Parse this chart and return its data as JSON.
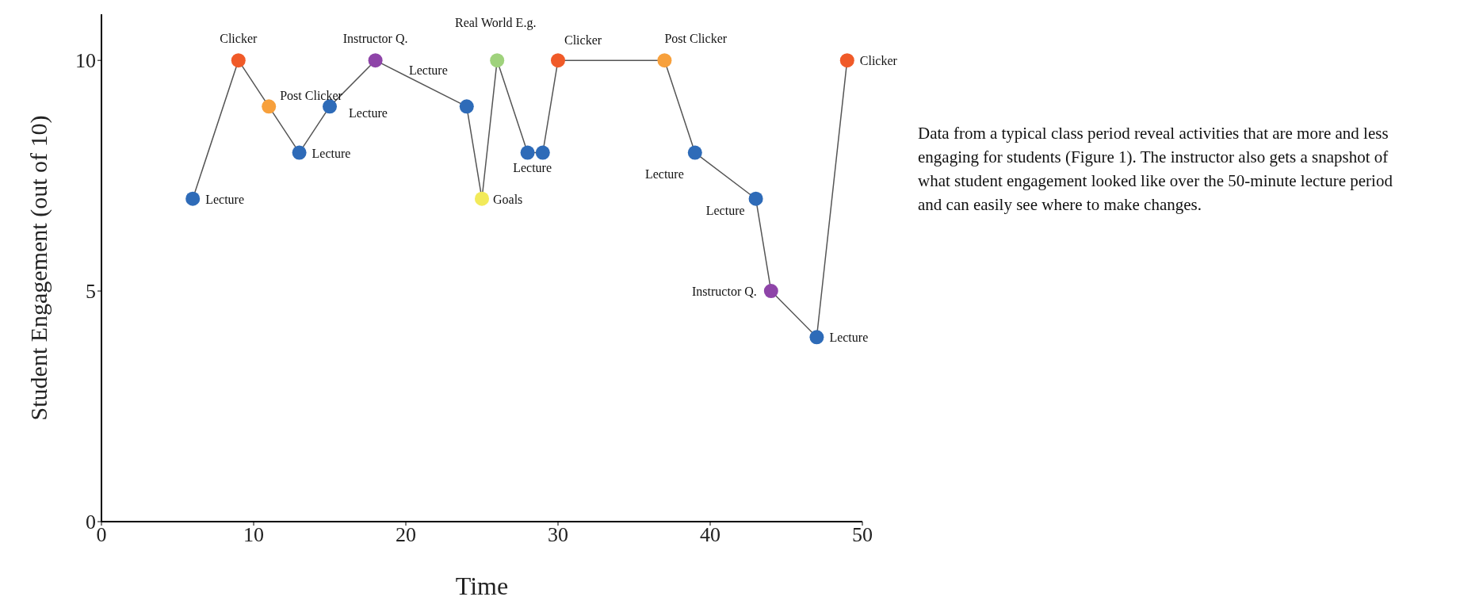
{
  "chart_data": {
    "type": "line",
    "xlabel": "Time",
    "ylabel": "Student Engagement (out of 10)",
    "xlim": [
      0,
      50
    ],
    "xticks": [
      0,
      10,
      20,
      30,
      40,
      50
    ],
    "ylim": [
      0,
      11
    ],
    "yticks": [
      0,
      5,
      10
    ],
    "marker": "circle",
    "line_style": "solid",
    "series": [
      {
        "color": "#555555",
        "x": [
          6,
          9,
          11,
          13,
          15,
          18,
          24,
          25,
          26,
          28,
          29,
          30,
          37,
          39,
          43,
          44,
          47,
          49
        ],
        "values": [
          7,
          10,
          9,
          8,
          9,
          10,
          9,
          7,
          10,
          8,
          8,
          10,
          10,
          8,
          7,
          5,
          4,
          10
        ],
        "colors": [
          "#2e6bb8",
          "#f05a28",
          "#f7a03c",
          "#2e6bb8",
          "#2e6bb8",
          "#8e44a8",
          "#2e6bb8",
          "#f2ea5a",
          "#9fd27c",
          "#2e6bb8",
          "#2e6bb8",
          "#f05a28",
          "#f7a03c",
          "#2e6bb8",
          "#2e6bb8",
          "#8e44a8",
          "#2e6bb8",
          "#f05a28"
        ],
        "value_labels": [
          "Lecture",
          "Clicker",
          "Post Clicker",
          "Lecture",
          "Lecture",
          "Instructor Q.",
          "Lecture",
          "Goals",
          "Real World E.g.",
          "Lecture",
          null,
          "Clicker",
          "Post Clicker",
          "Lecture",
          "Lecture",
          "Instructor Q.",
          "Lecture",
          "Clicker"
        ]
      }
    ],
    "annotations": [
      "Data from a typical class period reveal activities that are more and less engaging for students (Figure 1). The instructor also gets a snapshot of what student engagement looked like over the 50-minute lecture period and can easily see where to make changes."
    ]
  }
}
